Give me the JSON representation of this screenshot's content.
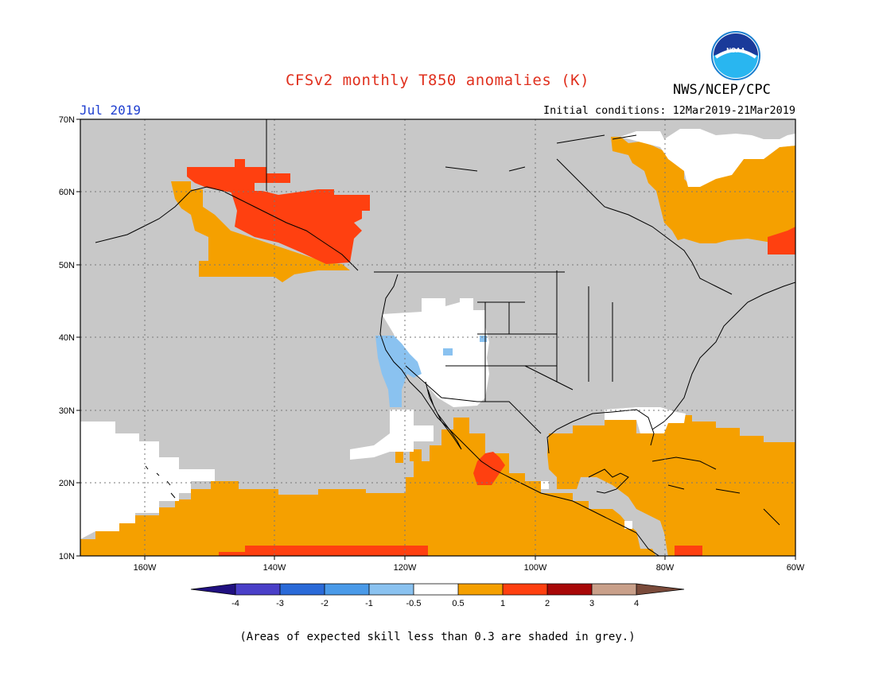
{
  "header": {
    "title": "CFSv2 monthly T850 anomalies (K)",
    "month": "Jul 2019",
    "initial_conditions": "Initial conditions: 12Mar2019-21Mar2019",
    "agency": "NWS/NCEP/CPC",
    "logo_text": "NOAA"
  },
  "colors": {
    "title": "#e0301e",
    "month": "#2040d0",
    "grey": "#c8c8c8",
    "ocean_bg": "#c8c8c8",
    "coast": "#000000"
  },
  "map": {
    "lon_range": [
      -170,
      -60
    ],
    "lat_range": [
      10,
      70
    ],
    "lat_labels": [
      "70N",
      "60N",
      "50N",
      "40N",
      "30N",
      "20N",
      "10N"
    ],
    "lon_labels": [
      "160W",
      "140W",
      "120W",
      "100W",
      "80W",
      "60W"
    ]
  },
  "colorbar": {
    "labels": [
      "-4",
      "-3",
      "-2",
      "-1",
      "-0.5",
      "0.5",
      "1",
      "2",
      "3",
      "4"
    ],
    "colors": [
      "#3a1a9a",
      "#4a3fc8",
      "#2a6ad8",
      "#4a9ae8",
      "#8ac2f0",
      "#ffffff",
      "#f5a000",
      "#ff4010",
      "#a80808",
      "#c9a08a",
      "#7a4a3a",
      "#201080"
    ]
  },
  "caption": "(Areas of expected skill less than 0.3 are shaded in grey.)"
}
